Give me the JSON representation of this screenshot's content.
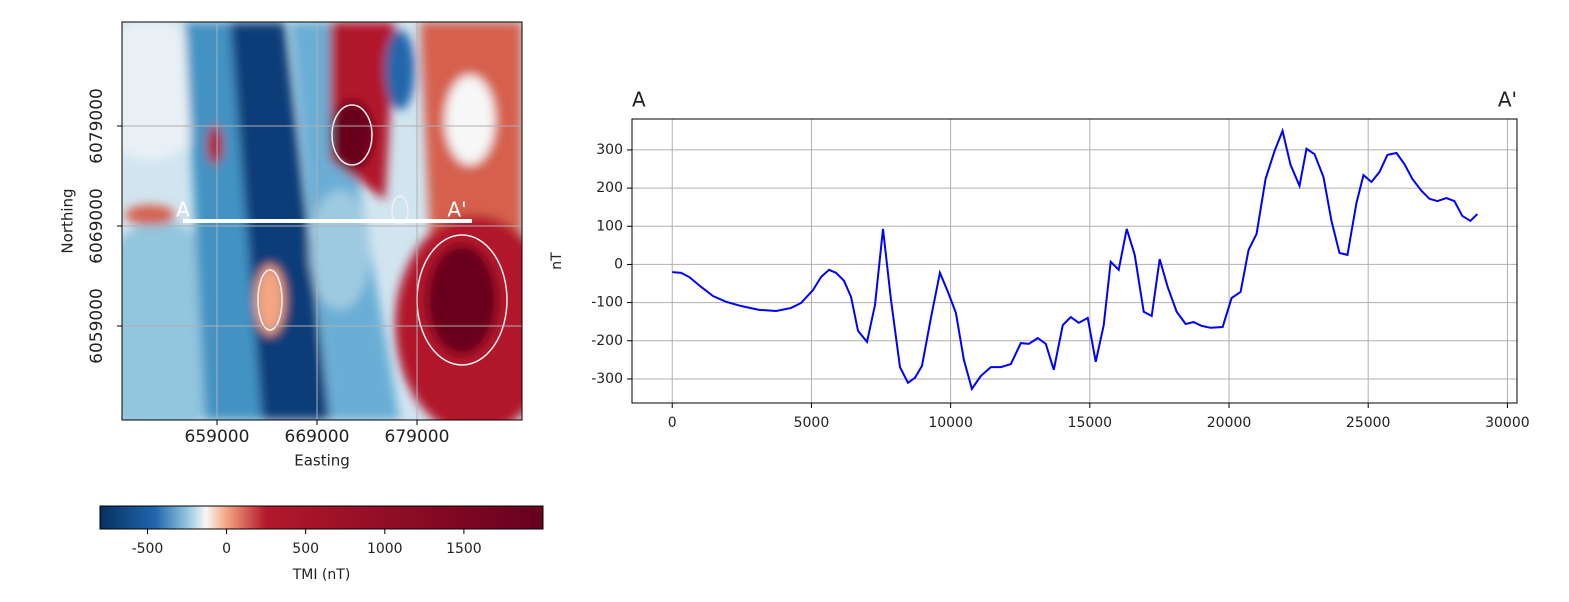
{
  "chart_data": [
    {
      "type": "map",
      "xlabel": "Easting",
      "ylabel": "Northing",
      "xlim": [
        649500,
        689500
      ],
      "ylim": [
        6049600,
        6089400
      ],
      "xticks": [
        659000,
        669000,
        679000
      ],
      "yticks": [
        6059000,
        6069000,
        6079000
      ],
      "grid": true,
      "profile": {
        "start": [
          655600,
          6069500
        ],
        "end": [
          684500,
          6069500
        ],
        "start_label": "A",
        "end_label": "A'",
        "color": "#ffffff"
      },
      "colorbar": {
        "label": "TMI (nT)",
        "lim": [
          -800,
          2000
        ],
        "ticks": [
          -500,
          0,
          500,
          1000,
          1500
        ],
        "stops": [
          {
            "value": -800,
            "color": "#053061"
          },
          {
            "value": -450,
            "color": "#2166ac"
          },
          {
            "value": -250,
            "color": "#92c5de"
          },
          {
            "value": -130,
            "color": "#f7f7f7"
          },
          {
            "value": 0,
            "color": "#f4a582"
          },
          {
            "value": 250,
            "color": "#b2182b"
          },
          {
            "value": 2000,
            "color": "#67001f"
          }
        ]
      }
    },
    {
      "type": "line",
      "title_left": "A",
      "title_right": "A'",
      "ylabel": "nT",
      "xlim": [
        -1445,
        30345
      ],
      "ylim": [
        -363,
        381
      ],
      "xticks": [
        0,
        5000,
        10000,
        15000,
        20000,
        25000,
        30000
      ],
      "yticks": [
        -300,
        -200,
        -100,
        0,
        100,
        200,
        300
      ],
      "grid": true,
      "color": "#0000ff",
      "x": [
        0,
        323,
        610,
        1041,
        1471,
        1938,
        2476,
        3122,
        3732,
        4270,
        4629,
        5059,
        5346,
        5633,
        5885,
        6172,
        6423,
        6674,
        6997,
        7284,
        7571,
        7858,
        8181,
        8468,
        8719,
        8970,
        9293,
        9616,
        9903,
        10190,
        10477,
        10764,
        11087,
        11446,
        11805,
        12164,
        12522,
        12809,
        13132,
        13419,
        13706,
        14029,
        14316,
        14603,
        14926,
        15213,
        15500,
        15751,
        16038,
        16326,
        16613,
        16936,
        17223,
        17510,
        17797,
        18120,
        18443,
        18730,
        19017,
        19340,
        19771,
        20093,
        20416,
        20703,
        20990,
        21313,
        21636,
        21923,
        22210,
        22533,
        22784,
        23071,
        23394,
        23681,
        23968,
        24255,
        24578,
        24830,
        25117,
        25404,
        25691,
        26014,
        26301,
        26588,
        26911,
        27198,
        27485,
        27808,
        28095,
        28382,
        28669,
        28920
      ],
      "values": [
        -20,
        -22,
        -33,
        -59,
        -83,
        -98,
        -109,
        -119,
        -122,
        -114,
        -101,
        -67,
        -33,
        -14,
        -22,
        -43,
        -85,
        -174,
        -203,
        -106,
        93,
        -93,
        -269,
        -310,
        -297,
        -266,
        -140,
        -22,
        -72,
        -127,
        -250,
        -326,
        -292,
        -269,
        -269,
        -261,
        -206,
        -208,
        -193,
        -208,
        -276,
        -159,
        -138,
        -153,
        -140,
        -255,
        -159,
        7,
        -14,
        93,
        25,
        -124,
        -135,
        14,
        -59,
        -124,
        -156,
        -151,
        -161,
        -166,
        -164,
        -88,
        -72,
        38,
        80,
        224,
        297,
        350,
        261,
        206,
        303,
        289,
        229,
        114,
        30,
        25,
        161,
        234,
        216,
        242,
        287,
        292,
        263,
        224,
        193,
        172,
        166,
        174,
        166,
        127,
        114,
        132
      ]
    }
  ]
}
